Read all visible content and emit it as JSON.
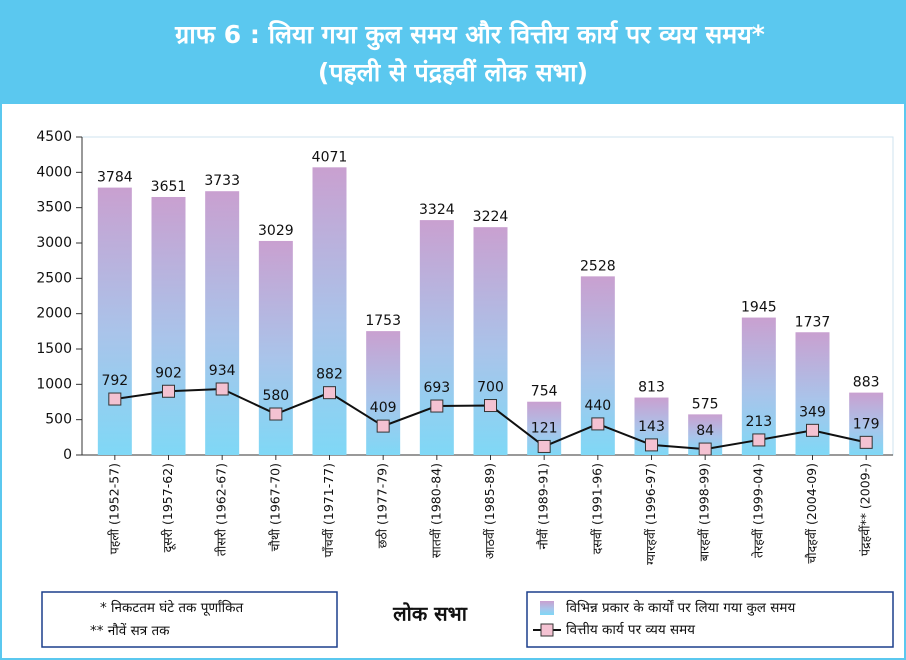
{
  "chart_data": {
    "type": "bar",
    "title": "ग्राफ 6 : लिया गया कुल समय और वित्तीय कार्य पर व्यय समय*",
    "subtitle": "(पहली से पंद्रहवीं लोक सभा)",
    "x_label": "लोक सभा",
    "notes": [
      "* निकटतम घंटे तक पूर्णांकित",
      "** नौवें सत्र तक"
    ],
    "categories": [
      "पहली (1952-57)",
      "दूसरी (1957-62)",
      "तीसरी (1962-67)",
      "चौथी (1967-70)",
      "पाँचवीं (1971-77)",
      "छठी (1977-79)",
      "सातवीं (1980-84)",
      "आठवीं (1985-89)",
      "नौवीं (1989-91)",
      "दसवीं (1991-96)",
      "ग्यारहवीं (1996-97)",
      "बारहवीं (1998-99)",
      "तेरहवीं (1999-04)",
      "चौदहवीं (2004-09)",
      "पंद्रहवीं** (2009-)"
    ],
    "series": [
      {
        "name": "विभिन्न प्रकार के कार्यों पर लिया गया कुल समय",
        "type": "bar",
        "color": "#c9a0d0",
        "values": [
          3784,
          3651,
          3733,
          3029,
          4071,
          1753,
          3324,
          3224,
          754,
          2528,
          813,
          575,
          1945,
          1737,
          883
        ]
      },
      {
        "name": "वित्तीय कार्य पर व्यय समय",
        "type": "line",
        "color": "#f4c2d2",
        "values": [
          792,
          902,
          934,
          580,
          882,
          409,
          693,
          700,
          121,
          440,
          143,
          84,
          213,
          349,
          179
        ]
      }
    ],
    "ylim": [
      0,
      4500
    ],
    "yticks": [
      0,
      500,
      1000,
      1500,
      2000,
      2500,
      3000,
      3500,
      4000,
      4500
    ]
  }
}
